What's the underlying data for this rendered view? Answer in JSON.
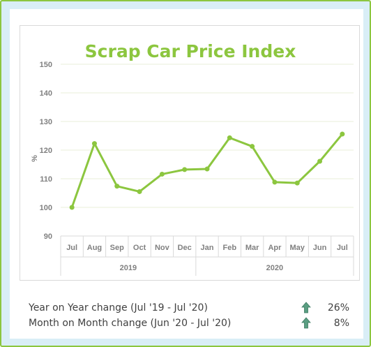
{
  "colors": {
    "accent": "#8cc63f",
    "frame": "#d9eef6",
    "arrow": "#5a9e82",
    "grid": "#e8efd8"
  },
  "chart_data": {
    "type": "line",
    "title": "Scrap Car Price Index",
    "ylabel": "%",
    "ylim": [
      90,
      150
    ],
    "yticks": [
      90,
      100,
      110,
      120,
      130,
      140,
      150
    ],
    "categories": [
      "Jul",
      "Aug",
      "Sep",
      "Oct",
      "Nov",
      "Dec",
      "Jan",
      "Feb",
      "Mar",
      "Apr",
      "May",
      "Jun",
      "Jul"
    ],
    "year_groups": [
      {
        "label": "2019",
        "count": 6
      },
      {
        "label": "2020",
        "count": 7
      }
    ],
    "series": [
      {
        "values": [
          100,
          122.3,
          107.4,
          105.5,
          111.6,
          113.2,
          113.4,
          124.3,
          121.3,
          108.8,
          108.5,
          116.1,
          125.6
        ]
      }
    ],
    "grid": true,
    "legend": "none"
  },
  "stats": [
    {
      "label": "Year on Year change (Jul '19 - Jul '20)",
      "icon": "up-arrow-icon",
      "value": "26%"
    },
    {
      "label": "Month on Month change (Jun '20 - Jul '20)",
      "icon": "up-arrow-icon",
      "value": "8%"
    }
  ]
}
